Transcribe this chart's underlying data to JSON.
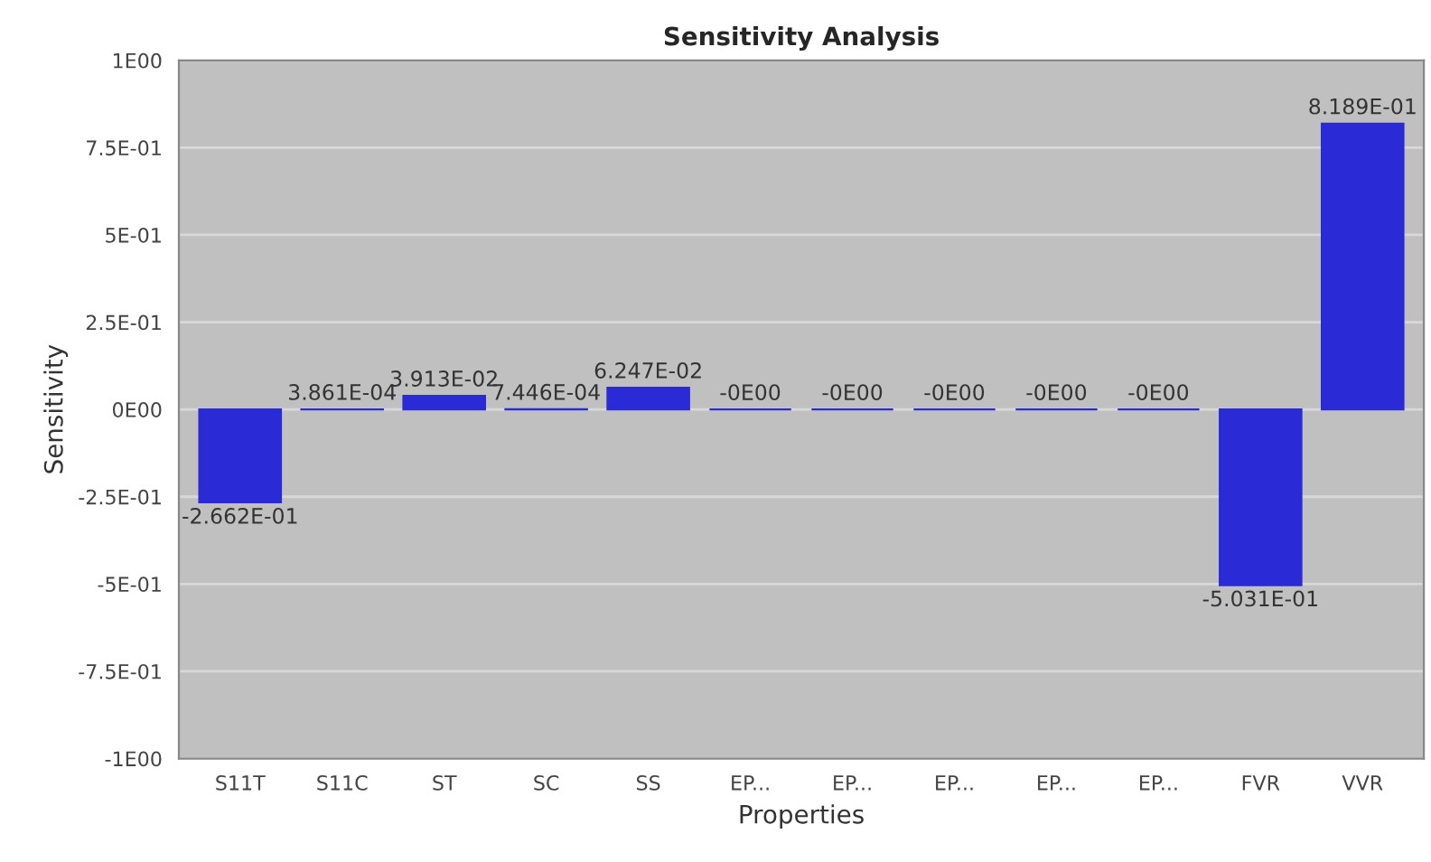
{
  "chart_data": {
    "type": "bar",
    "title": "Sensitivity Analysis",
    "xlabel": "Properties",
    "ylabel": "Sensitivity",
    "categories": [
      "S11T",
      "S11C",
      "ST",
      "SC",
      "SS",
      "EP...",
      "EP...",
      "EP...",
      "EP...",
      "EP...",
      "FVR",
      "VVR"
    ],
    "values": [
      -0.2662,
      0.0003861,
      0.03913,
      0.0007446,
      0.06247,
      0,
      0,
      0,
      0,
      0,
      -0.5031,
      0.8189
    ],
    "value_labels": [
      "-2.662E-01",
      "3.861E-04",
      "3.913E-02",
      "7.446E-04",
      "6.247E-02",
      "-0E00",
      "-0E00",
      "-0E00",
      "-0E00",
      "-0E00",
      "-5.031E-01",
      "8.189E-01"
    ],
    "color": "#2a2ad6",
    "ylim": [
      -1,
      1
    ],
    "yticks": [
      {
        "value": -1,
        "label": "-1E00"
      },
      {
        "value": -0.75,
        "label": "-7.5E-01"
      },
      {
        "value": -0.5,
        "label": "-5E-01"
      },
      {
        "value": -0.25,
        "label": "-2.5E-01"
      },
      {
        "value": 0,
        "label": "0E00"
      },
      {
        "value": 0.25,
        "label": "2.5E-01"
      },
      {
        "value": 0.5,
        "label": "5E-01"
      },
      {
        "value": 0.75,
        "label": "7.5E-01"
      },
      {
        "value": 1,
        "label": "1E00"
      }
    ],
    "grid": "y"
  }
}
